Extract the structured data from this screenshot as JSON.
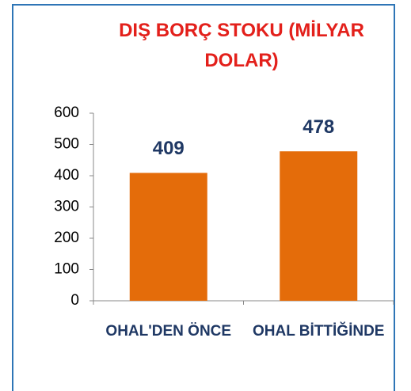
{
  "chart_data": {
    "type": "bar",
    "title": "DIŞ BORÇ STOKU (MİLYAR DOLAR)",
    "categories": [
      "OHAL'DEN ÖNCE",
      "OHAL BİTTİĞİNDE"
    ],
    "values": [
      409,
      478
    ],
    "color": "#e46c0a",
    "ylim": [
      0,
      600
    ],
    "yticks": [
      0,
      100,
      200,
      300,
      400,
      500,
      600
    ],
    "grid": false
  }
}
